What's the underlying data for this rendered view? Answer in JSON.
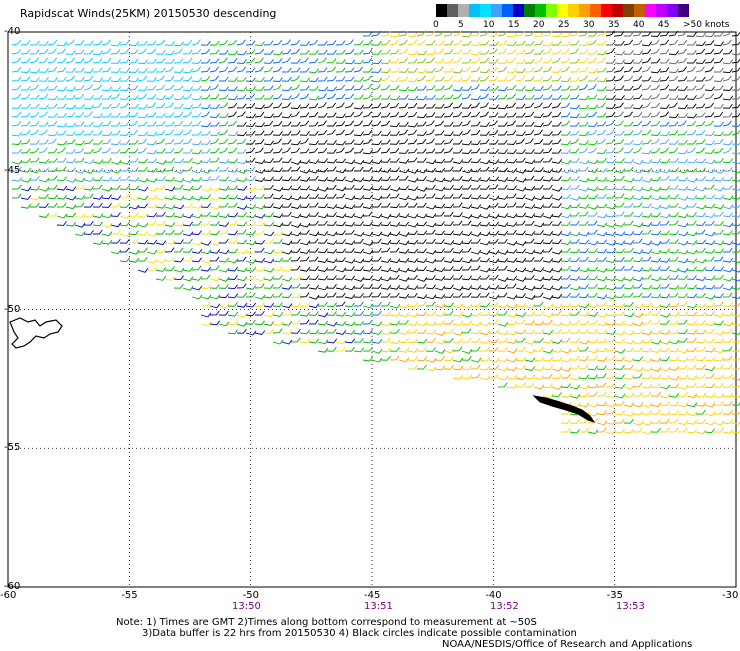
{
  "title": "Rapidscat Winds(25KM) 20150530 descending",
  "legend": {
    "labels": [
      "0",
      "5",
      "10",
      "15",
      "20",
      "25",
      "30",
      "35",
      "40",
      "45",
      ">50 knots"
    ],
    "colors": [
      "#000000",
      "#606060",
      "#b0b0b0",
      "#00c0ff",
      "#00e0ff",
      "#40a0ff",
      "#0060ff",
      "#0000c0",
      "#008000",
      "#00c000",
      "#80ff00",
      "#ffff00",
      "#ffd000",
      "#ffa000",
      "#ff6000",
      "#ff0000",
      "#c00000",
      "#804000",
      "#c06000",
      "#ff00ff",
      "#c000ff",
      "#8000ff",
      "#400080"
    ]
  },
  "map": {
    "lon_range": [
      -60,
      -30
    ],
    "lat_range": [
      -60,
      -40
    ],
    "lon_ticks": [
      "-60",
      "-55",
      "-50",
      "-45",
      "-40",
      "-35",
      "-30"
    ],
    "lat_ticks": [
      "-40",
      "-45",
      "-50",
      "-55",
      "-60"
    ],
    "times": [
      "13:50",
      "13:51",
      "13:52",
      "13:53"
    ]
  },
  "notes": {
    "line1": "Note: 1) Times are GMT 2)Times along bottom correspond to measurement at ~50S",
    "line2": "3)Data buffer is 22 hrs from 20150530 4) Black circles indicate possible contamination",
    "credit": "NOAA/NESDIS/Office of Research and Applications"
  }
}
